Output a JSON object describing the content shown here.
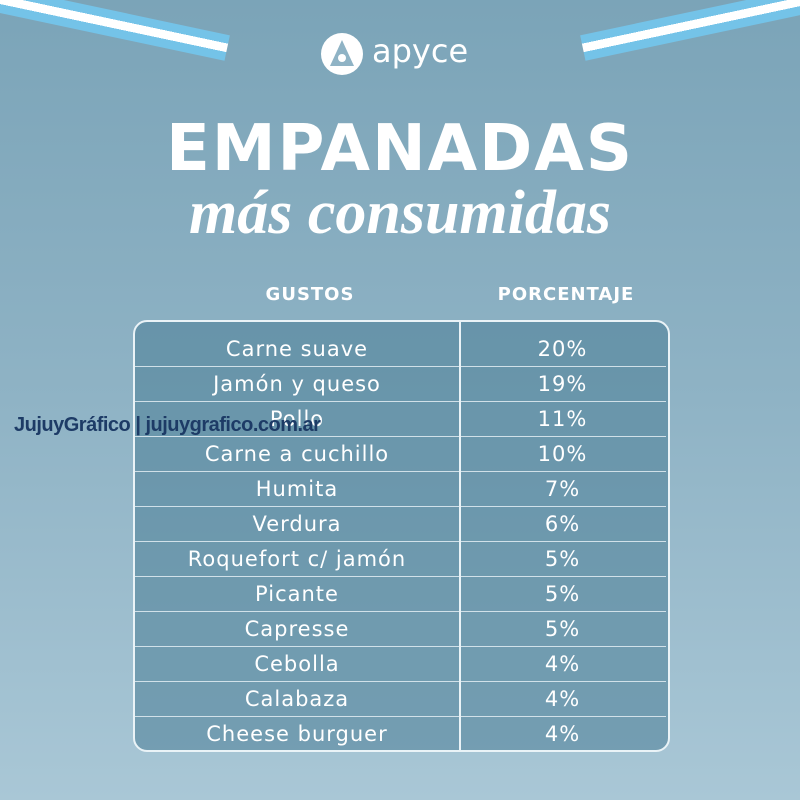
{
  "header": {
    "logo": "apyce",
    "title": "EMPANADAS",
    "subtitle": "más consumidas"
  },
  "table": {
    "headers": [
      "GUSTOS",
      "PORCENTAJE"
    ],
    "rows": [
      [
        "Carne suave",
        "20%"
      ],
      [
        "Jamón y queso",
        "19%"
      ],
      [
        "Pollo",
        "11%"
      ],
      [
        "Carne a cuchillo",
        "10%"
      ],
      [
        "Humita",
        "7%"
      ],
      [
        "Verdura",
        "6%"
      ],
      [
        "Roquefort c/ jamón",
        "5%"
      ],
      [
        "Picante",
        "5%"
      ],
      [
        "Capresse",
        "5%"
      ],
      [
        "Cebolla",
        "4%"
      ],
      [
        "Calabaza",
        "4%"
      ],
      [
        "Cheese burguer",
        "4%"
      ]
    ]
  },
  "watermark": "JujuyGráfico | jujuygrafico.com.ar"
}
